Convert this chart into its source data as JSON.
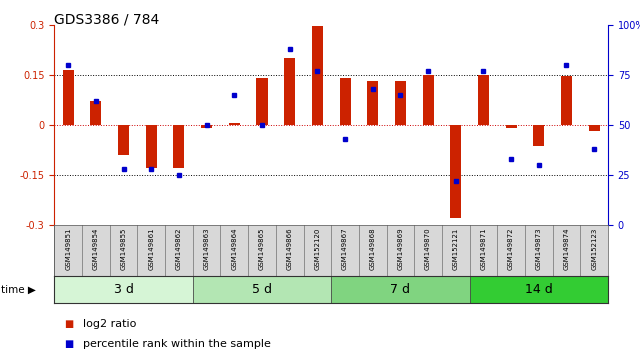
{
  "title": "GDS3386 / 784",
  "samples": [
    "GSM149851",
    "GSM149854",
    "GSM149855",
    "GSM149861",
    "GSM149862",
    "GSM149863",
    "GSM149864",
    "GSM149865",
    "GSM149866",
    "GSM152120",
    "GSM149867",
    "GSM149868",
    "GSM149869",
    "GSM149870",
    "GSM152121",
    "GSM149871",
    "GSM149872",
    "GSM149873",
    "GSM149874",
    "GSM152123"
  ],
  "log2_ratio": [
    0.165,
    0.07,
    -0.09,
    -0.13,
    -0.13,
    -0.01,
    0.005,
    0.14,
    0.2,
    0.295,
    0.14,
    0.13,
    0.13,
    0.15,
    -0.28,
    0.15,
    -0.01,
    -0.065,
    0.145,
    -0.02
  ],
  "percentile_rank": [
    80,
    62,
    28,
    28,
    25,
    50,
    65,
    50,
    88,
    77,
    43,
    68,
    65,
    77,
    22,
    77,
    33,
    30,
    80,
    38
  ],
  "groups": [
    {
      "label": "3 d",
      "start": 0,
      "end": 5
    },
    {
      "label": "5 d",
      "start": 5,
      "end": 10
    },
    {
      "label": "7 d",
      "start": 10,
      "end": 15
    },
    {
      "label": "14 d",
      "start": 15,
      "end": 20
    }
  ],
  "group_colors": [
    "#d6f5d6",
    "#b3e6b3",
    "#80d480",
    "#33cc33"
  ],
  "ylim_left": [
    -0.3,
    0.3
  ],
  "ylim_right": [
    0,
    100
  ],
  "yticks_left": [
    -0.3,
    -0.15,
    0.0,
    0.15,
    0.3
  ],
  "yticks_right": [
    0,
    25,
    50,
    75,
    100
  ],
  "bar_color_red": "#cc2200",
  "bar_color_blue": "#0000cc",
  "bg_color": "#ffffff",
  "dotted_line_color": "#000000",
  "zero_line_color": "#cc0000",
  "title_fontsize": 10,
  "tick_fontsize": 7,
  "legend_fontsize": 8,
  "group_label_fontsize": 9,
  "sample_fontsize": 5
}
